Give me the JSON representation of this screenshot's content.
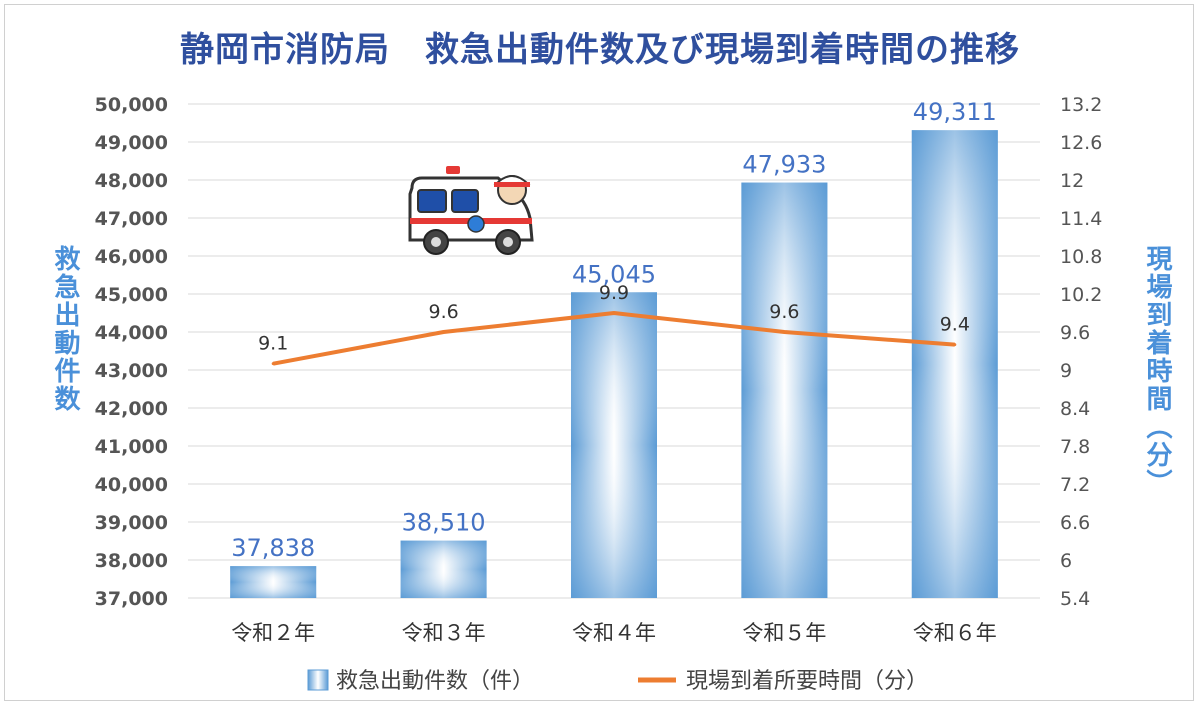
{
  "chart_data": {
    "type": "bar+line",
    "title": "静岡市消防局　救急出動件数及び現場到着時間の推移",
    "categories": [
      "令和２年",
      "令和３年",
      "令和４年",
      "令和５年",
      "令和６年"
    ],
    "series": [
      {
        "name": "救急出動件数（件）",
        "type": "bar",
        "axis": "left",
        "values": [
          37838,
          38510,
          45045,
          47933,
          49311
        ],
        "labels": [
          "37,838",
          "38,510",
          "45,045",
          "47,933",
          "49,311"
        ],
        "color": "#5b9bd5"
      },
      {
        "name": "現場到着所要時間（分）",
        "type": "line",
        "axis": "right",
        "values": [
          9.1,
          9.6,
          9.9,
          9.6,
          9.4
        ],
        "labels": [
          "9.1",
          "9.6",
          "9.9",
          "9.6",
          "9.4"
        ],
        "color": "#ed7d31"
      }
    ],
    "y_left": {
      "label": "救急出動件数",
      "min": 37000,
      "max": 50000,
      "step": 1000,
      "ticks": [
        "37,000",
        "38,000",
        "39,000",
        "40,000",
        "41,000",
        "42,000",
        "43,000",
        "44,000",
        "45,000",
        "46,000",
        "47,000",
        "48,000",
        "49,000",
        "50,000"
      ]
    },
    "y_right": {
      "label": "現場到着時間（分）",
      "min": 5.4,
      "max": 13.2,
      "step": 0.6,
      "ticks": [
        "5.4",
        "6",
        "6.6",
        "7.2",
        "7.8",
        "8.4",
        "9",
        "9.6",
        "10.2",
        "10.8",
        "11.4",
        "12",
        "12.6",
        "13.2"
      ]
    },
    "grid": true,
    "legend_position": "bottom"
  },
  "colors": {
    "title": "#2f4f9e",
    "axis_label": "#4a90d9",
    "bar": "#5b9bd5",
    "line": "#ed7d31",
    "grid": "#d9d9d9",
    "bar_label": "#4472c4"
  },
  "decoration": {
    "icon": "ambulance-icon"
  }
}
